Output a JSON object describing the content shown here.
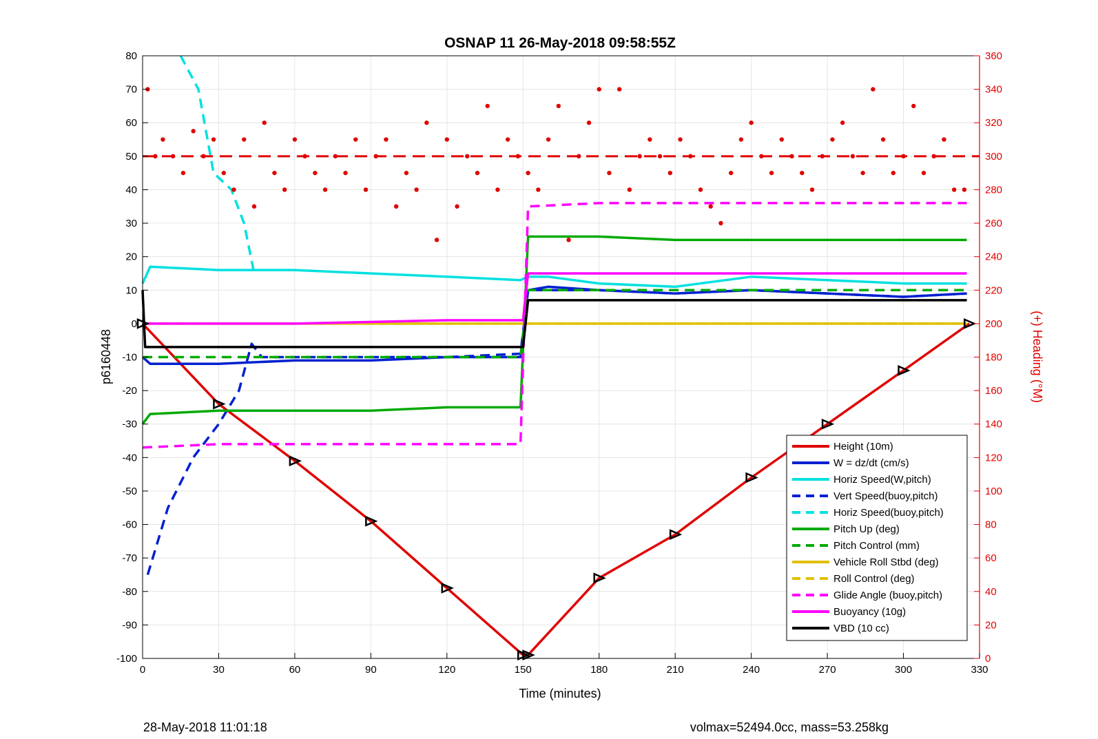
{
  "chart_data": {
    "type": "line",
    "title": "OSNAP 11 26-May-2018 09:58:55Z",
    "xlabel": "Time (minutes)",
    "ylabel": "p6160448",
    "y2label": "(+) Heading (°M)",
    "xlim": [
      0,
      330
    ],
    "ylim": [
      -100,
      80
    ],
    "y2lim": [
      0,
      360
    ],
    "xticks": [
      0,
      30,
      60,
      90,
      120,
      150,
      180,
      210,
      240,
      270,
      300,
      330
    ],
    "yticks": [
      80,
      70,
      60,
      50,
      40,
      30,
      20,
      10,
      0,
      -10,
      -20,
      -30,
      -40,
      -50,
      -60,
      -70,
      -80,
      -90,
      -100
    ],
    "y2ticks": [
      360,
      340,
      320,
      300,
      280,
      260,
      240,
      220,
      200,
      180,
      160,
      140,
      120,
      100,
      80,
      60,
      40,
      20,
      0
    ],
    "grid": true,
    "legend_position": "bottom-right",
    "footer_left": "28-May-2018 11:01:18",
    "footer_right": "volmax=52494.0cc, mass=53.258kg",
    "series": [
      {
        "name": "Height (10m)",
        "color": "#e00000",
        "style": "solid",
        "x": [
          0,
          30,
          60,
          90,
          120,
          150,
          152,
          180,
          210,
          240,
          270,
          300,
          326
        ],
        "y": [
          0,
          -24,
          -41,
          -59,
          -79,
          -99,
          -99,
          -76,
          -63,
          -46,
          -30,
          -14,
          0
        ]
      },
      {
        "name": "W = dz/dt (cm/s)",
        "color": "#0020d0",
        "style": "solid",
        "x": [
          0,
          3,
          30,
          60,
          90,
          120,
          149,
          152,
          160,
          180,
          210,
          240,
          270,
          300,
          325
        ],
        "y": [
          -10,
          -12,
          -12,
          -11,
          -11,
          -10,
          -10,
          10,
          11,
          10,
          9,
          10,
          9,
          8,
          9
        ]
      },
      {
        "name": "Horiz Speed(W,pitch)",
        "color": "#00e0e0",
        "style": "solid",
        "x": [
          0,
          3,
          30,
          60,
          90,
          120,
          149,
          152,
          160,
          180,
          210,
          240,
          270,
          300,
          325
        ],
        "y": [
          12,
          17,
          16,
          16,
          15,
          14,
          13,
          14,
          14,
          12,
          11,
          14,
          13,
          12,
          12
        ]
      },
      {
        "name": "Vert Speed(buoy,pitch)",
        "color": "#0020d0",
        "style": "dashed",
        "x": [
          2,
          10,
          20,
          30,
          38,
          43,
          47,
          60,
          90,
          120,
          149,
          152,
          180,
          210,
          240,
          270,
          300,
          325
        ],
        "y": [
          -75,
          -55,
          -40,
          -30,
          -20,
          -6,
          -10,
          -10,
          -10,
          -10,
          -9,
          10,
          10,
          9,
          10,
          9,
          8,
          9
        ]
      },
      {
        "name": "Horiz Speed(buoy,pitch)",
        "color": "#00e0e0",
        "style": "dashed",
        "x": [
          15,
          22,
          28,
          35,
          40,
          44
        ],
        "y": [
          80,
          70,
          45,
          40,
          30,
          15
        ]
      },
      {
        "name": "Pitch Up (deg)",
        "color": "#00aa00",
        "style": "solid",
        "x": [
          0,
          3,
          30,
          60,
          90,
          120,
          149,
          152,
          180,
          210,
          240,
          270,
          300,
          325
        ],
        "y": [
          -30,
          -27,
          -26,
          -26,
          -26,
          -25,
          -25,
          26,
          26,
          25,
          25,
          25,
          25,
          25
        ]
      },
      {
        "name": "Pitch Control (mm)",
        "color": "#00aa00",
        "style": "dashed",
        "x": [
          0,
          149,
          152,
          325
        ],
        "y": [
          -10,
          -10,
          10,
          10
        ]
      },
      {
        "name": "Vehicle Roll Stbd (deg)",
        "color": "#e0c000",
        "style": "solid",
        "x": [
          0,
          30,
          60,
          90,
          120,
          150,
          180,
          210,
          240,
          270,
          300,
          325
        ],
        "y": [
          0,
          0,
          0,
          0,
          0,
          0,
          0,
          0,
          0,
          0,
          0,
          0
        ]
      },
      {
        "name": "Roll Control (deg)",
        "color": "#e0c000",
        "style": "dashed",
        "x": [
          0,
          30,
          60,
          90,
          120,
          150,
          180,
          210,
          240,
          270,
          300,
          325
        ],
        "y": [
          0,
          0,
          0,
          0,
          0,
          0,
          0,
          0,
          0,
          0,
          0,
          0
        ]
      },
      {
        "name": "Glide Angle (buoy,pitch)",
        "color": "#ff00ff",
        "style": "dashed",
        "x": [
          0,
          30,
          60,
          90,
          120,
          149,
          152,
          180,
          210,
          240,
          270,
          300,
          325
        ],
        "y": [
          -37,
          -36,
          -36,
          -36,
          -36,
          -36,
          35,
          36,
          36,
          36,
          36,
          36,
          36
        ]
      },
      {
        "name": "Buoyancy (10g)",
        "color": "#ff00ff",
        "style": "solid",
        "x": [
          0,
          60,
          120,
          150,
          152,
          180,
          240,
          300,
          325
        ],
        "y": [
          0,
          0,
          1,
          1,
          15,
          15,
          15,
          15,
          15
        ]
      },
      {
        "name": "VBD (10 cc)",
        "color": "#000000",
        "style": "solid",
        "x": [
          0,
          1,
          150,
          152,
          325
        ],
        "y": [
          10,
          -7,
          -7,
          7,
          7
        ]
      }
    ],
    "heading": {
      "name": "",
      "color": "#e00000",
      "axis": "right",
      "reference": 300,
      "x": [
        2,
        5,
        8,
        12,
        16,
        20,
        24,
        28,
        32,
        36,
        40,
        44,
        48,
        52,
        56,
        60,
        64,
        68,
        72,
        76,
        80,
        84,
        88,
        92,
        96,
        100,
        104,
        108,
        112,
        116,
        120,
        124,
        128,
        132,
        136,
        140,
        144,
        148,
        152,
        156,
        160,
        164,
        168,
        172,
        176,
        180,
        184,
        188,
        192,
        196,
        200,
        204,
        208,
        212,
        216,
        220,
        224,
        228,
        232,
        236,
        240,
        244,
        248,
        252,
        256,
        260,
        264,
        268,
        272,
        276,
        280,
        284,
        288,
        292,
        296,
        300,
        304,
        308,
        312,
        316,
        320,
        324
      ],
      "y": [
        340,
        300,
        310,
        300,
        290,
        315,
        300,
        310,
        290,
        280,
        310,
        270,
        320,
        290,
        280,
        310,
        300,
        290,
        280,
        300,
        290,
        310,
        280,
        300,
        310,
        270,
        290,
        280,
        320,
        250,
        310,
        270,
        300,
        290,
        330,
        280,
        310,
        300,
        290,
        280,
        310,
        330,
        250,
        300,
        320,
        340,
        290,
        340,
        280,
        300,
        310,
        300,
        290,
        310,
        300,
        280,
        270,
        260,
        290,
        310,
        320,
        300,
        290,
        310,
        300,
        290,
        280,
        300,
        310,
        320,
        300,
        290,
        340,
        310,
        290,
        300,
        330,
        290,
        300,
        310,
        280,
        280
      ]
    }
  }
}
